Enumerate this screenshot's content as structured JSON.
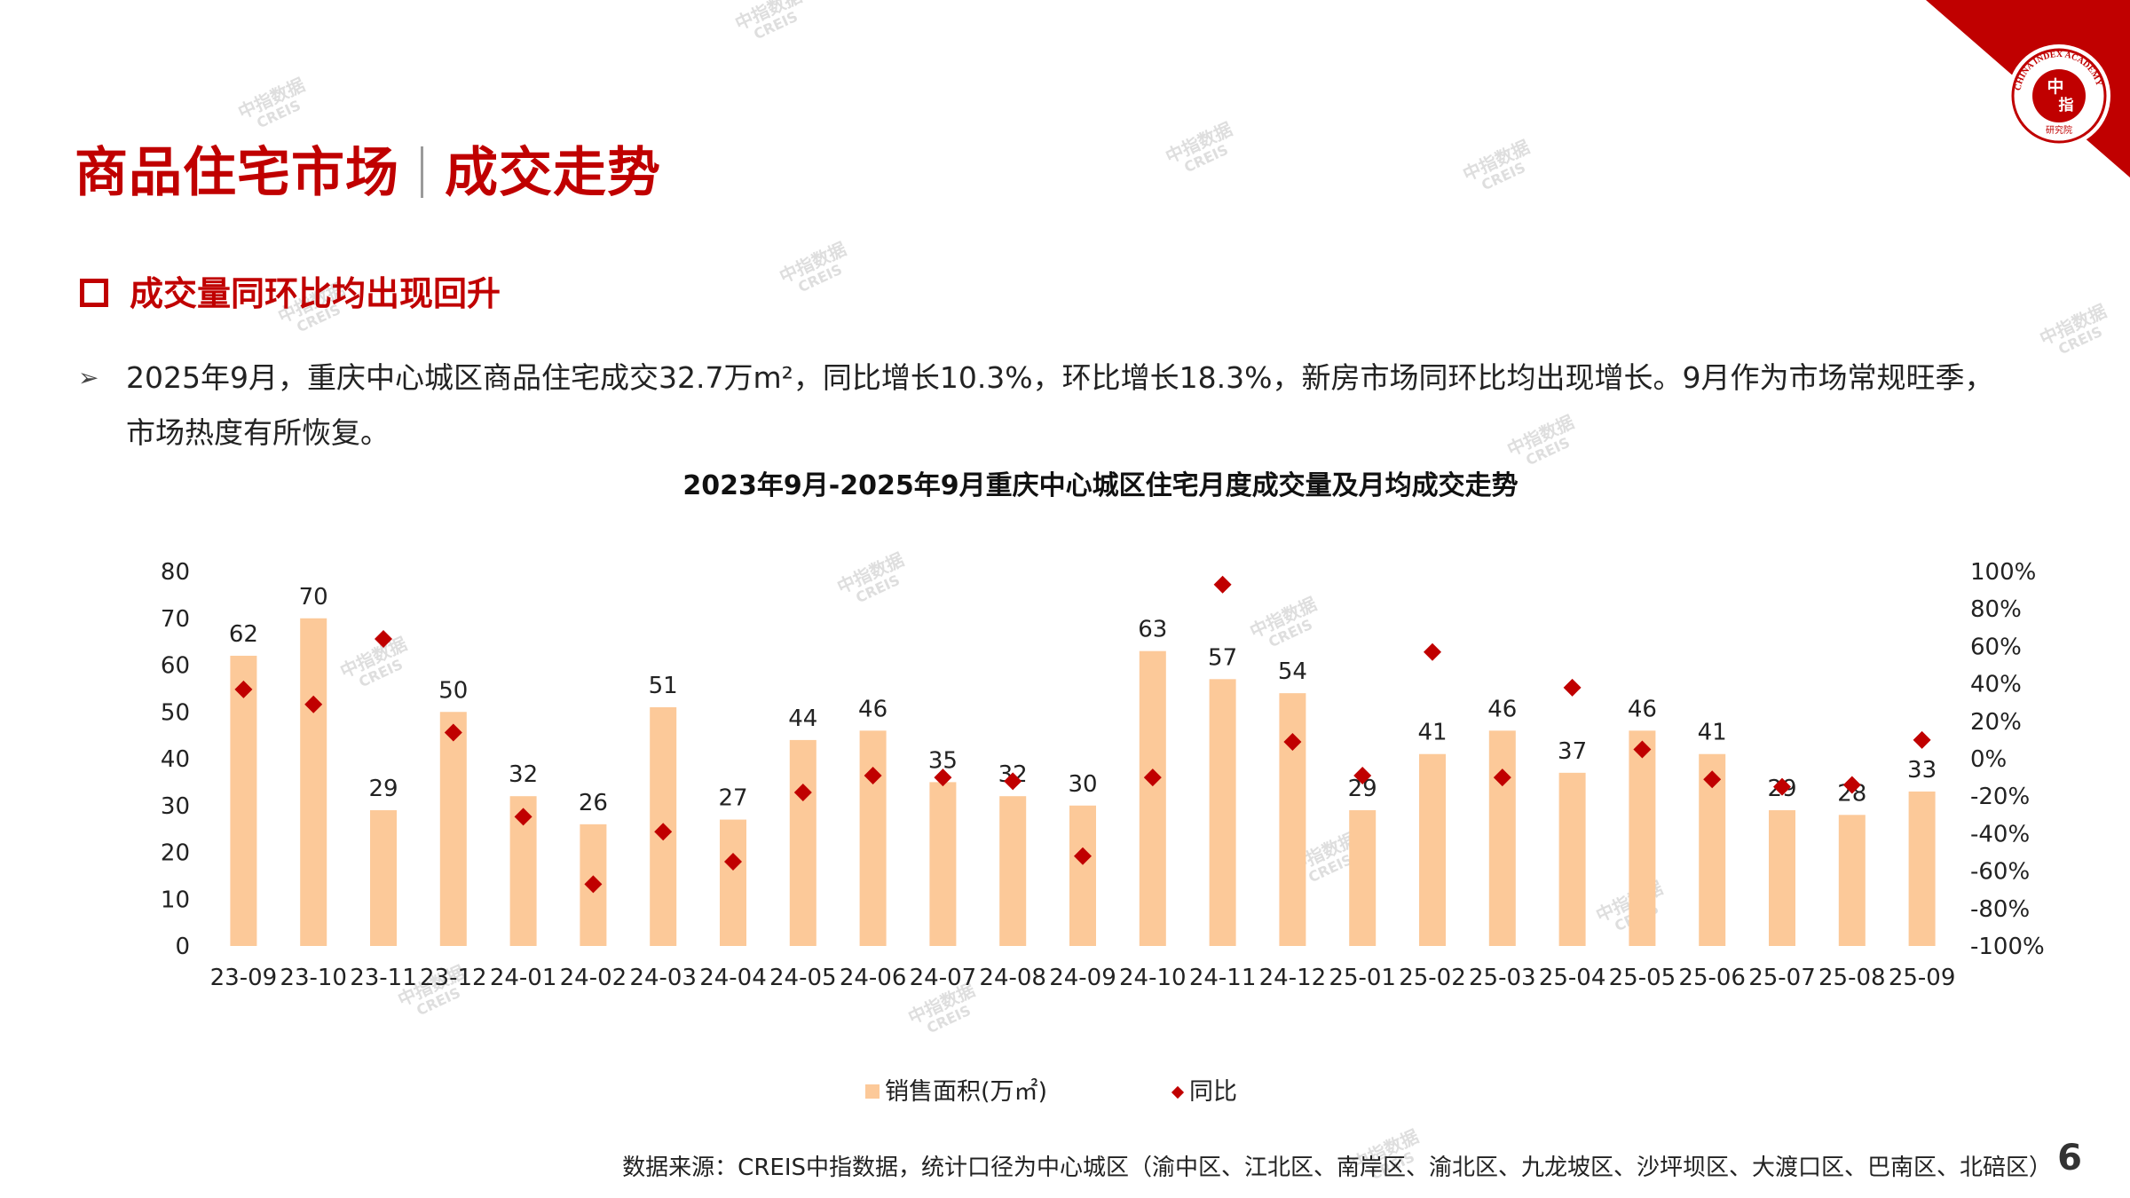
{
  "page": {
    "title_left": "商品住宅市场",
    "title_right": "成交走势",
    "subheading": "成交量同环比均出现回升",
    "bullet_line1": "2025年9月，重庆中心城区商品住宅成交32.7万m²，同比增长10.3%，环比增长18.3%，新房市场同环比均出现增长。9月作为市场常规旺季，",
    "bullet_line2": "市场热度有所恢复。",
    "source": "数据来源：CREIS中指数据，统计口径为中心城区（渝中区、江北区、南岸区、渝北区、九龙坡区、沙坪坝区、大渡口区、巴南区、北碚区）",
    "page_number": "6",
    "watermark_cn": "中指数据",
    "watermark_en": "CREIS"
  },
  "logo": {
    "center_top": "中",
    "center_bottom": "指",
    "ring_text": "CHINA INDEX ACADEMY",
    "bottom_text": "研究院",
    "color": "#c00000"
  },
  "chart_data": {
    "type": "bar",
    "title": "2023年9月-2025年9月重庆中心城区住宅月度成交量及月均成交走势",
    "categories": [
      "23-09",
      "23-10",
      "23-11",
      "23-12",
      "24-01",
      "24-02",
      "24-03",
      "24-04",
      "24-05",
      "24-06",
      "24-07",
      "24-08",
      "24-09",
      "24-10",
      "24-11",
      "24-12",
      "25-01",
      "25-02",
      "25-03",
      "25-04",
      "25-05",
      "25-06",
      "25-07",
      "25-08",
      "25-09"
    ],
    "series": [
      {
        "name": "销售面积(万㎡)",
        "type": "bar",
        "axis": "left",
        "color": "#fcc999",
        "values": [
          62,
          70,
          29,
          50,
          32,
          26,
          51,
          27,
          44,
          46,
          35,
          32,
          30,
          63,
          57,
          54,
          29,
          41,
          46,
          37,
          46,
          41,
          29,
          28,
          33
        ]
      },
      {
        "name": "同比",
        "type": "scatter",
        "marker": "diamond",
        "axis": "right",
        "color": "#c00000",
        "values": [
          37,
          29,
          64,
          14,
          -31,
          -67,
          -39,
          -55,
          -18,
          -9,
          -10,
          -12,
          -52,
          -10,
          93,
          9,
          -9,
          57,
          -10,
          38,
          5,
          -11,
          -15,
          -14,
          10
        ]
      }
    ],
    "ylim_left": [
      0,
      80
    ],
    "yticks_left": [
      "0",
      "10",
      "20",
      "30",
      "40",
      "50",
      "60",
      "70",
      "80"
    ],
    "ylim_right": [
      -100,
      100
    ],
    "yticks_right": [
      "-100%",
      "-80%",
      "-60%",
      "-40%",
      "-20%",
      "0%",
      "20%",
      "40%",
      "60%",
      "80%",
      "100%"
    ],
    "grid": false,
    "legend": "bottom"
  }
}
